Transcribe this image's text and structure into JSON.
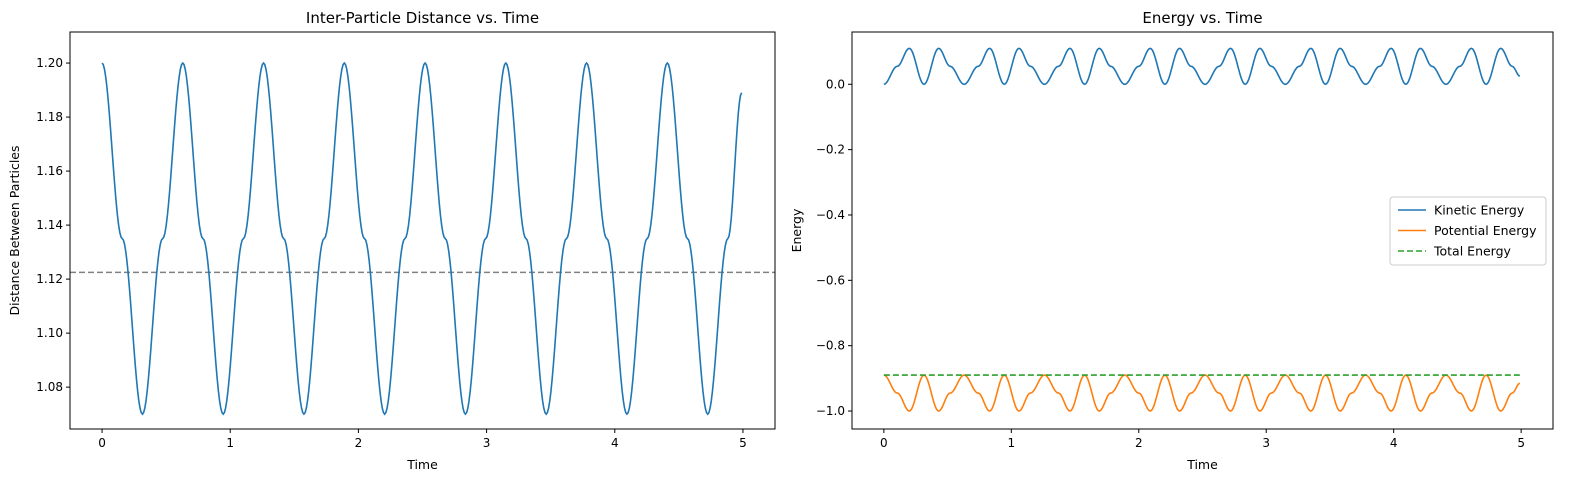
{
  "chart_data": [
    {
      "type": "line",
      "title": "Inter-Particle Distance vs. Time",
      "xlabel": "Time",
      "ylabel": "Distance Between Particles",
      "xlim": [
        -0.25,
        5.25
      ],
      "ylim": [
        1.0645,
        1.2115
      ],
      "xticks": [
        0,
        1,
        2,
        3,
        4,
        5
      ],
      "xtick_labels": [
        "0",
        "1",
        "2",
        "3",
        "4",
        "5"
      ],
      "yticks": [
        1.08,
        1.1,
        1.12,
        1.14,
        1.16,
        1.18,
        1.2
      ],
      "ytick_labels": [
        "1.08",
        "1.10",
        "1.12",
        "1.14",
        "1.16",
        "1.18",
        "1.20"
      ],
      "series": [
        {
          "color": "#1f77b4",
          "style": "solid",
          "x": [
            0,
            0.1575,
            0.315,
            0.4725,
            0.63,
            0.7875,
            0.945,
            1.1025,
            1.26,
            1.4175,
            1.575,
            1.7325,
            1.89,
            2.0475,
            2.205,
            2.3625,
            2.52,
            2.6775,
            2.835,
            2.9925,
            3.15,
            3.3075,
            3.465,
            3.6225,
            3.78,
            3.9375,
            4.095,
            4.2525,
            4.41,
            4.5675,
            4.725,
            4.8825,
            4.99
          ],
          "y": [
            1.2,
            1.135,
            1.07,
            1.135,
            1.2,
            1.135,
            1.07,
            1.135,
            1.2,
            1.135,
            1.07,
            1.135,
            1.2,
            1.135,
            1.07,
            1.135,
            1.2,
            1.135,
            1.07,
            1.135,
            1.2,
            1.135,
            1.07,
            1.135,
            1.2,
            1.135,
            1.07,
            1.135,
            1.2,
            1.135,
            1.07,
            1.135,
            1.189
          ]
        }
      ],
      "hlines": [
        {
          "y": 1.1225,
          "color": "#808080",
          "style": "dashed"
        }
      ],
      "grid": false
    },
    {
      "type": "line",
      "title": "Energy vs. Time",
      "xlabel": "Time",
      "ylabel": "Energy",
      "xlim": [
        -0.25,
        5.25
      ],
      "ylim": [
        -1.055,
        0.16
      ],
      "xticks": [
        0,
        1,
        2,
        3,
        4,
        5
      ],
      "xtick_labels": [
        "0",
        "1",
        "2",
        "3",
        "4",
        "5"
      ],
      "yticks": [
        -1.0,
        -0.8,
        -0.6,
        -0.4,
        -0.2,
        0.0
      ],
      "ytick_labels": [
        "−1.0",
        "−0.8",
        "−0.6",
        "−0.4",
        "−0.2",
        "0.0"
      ],
      "legend_position": "center-right",
      "series": [
        {
          "name": "Kinetic Energy",
          "color": "#1f77b4",
          "style": "solid",
          "x": [
            0,
            0.105,
            0.2,
            0.315,
            0.43,
            0.52,
            0.63,
            0.74,
            0.83,
            0.945,
            1.06,
            1.15,
            1.26,
            1.37,
            1.46,
            1.575,
            1.69,
            1.78,
            1.89,
            2.0,
            2.09,
            2.205,
            2.32,
            2.41,
            2.52,
            2.63,
            2.72,
            2.835,
            2.95,
            3.04,
            3.15,
            3.26,
            3.35,
            3.465,
            3.58,
            3.67,
            3.78,
            3.89,
            3.98,
            4.095,
            4.21,
            4.3,
            4.41,
            4.52,
            4.61,
            4.725,
            4.84,
            4.93,
            4.99
          ],
          "y": [
            0.0,
            0.055,
            0.11,
            0.0,
            0.11,
            0.055,
            0.0,
            0.055,
            0.11,
            0.0,
            0.11,
            0.055,
            0.0,
            0.055,
            0.11,
            0.0,
            0.11,
            0.055,
            0.0,
            0.055,
            0.11,
            0.0,
            0.11,
            0.055,
            0.0,
            0.055,
            0.11,
            0.0,
            0.11,
            0.055,
            0.0,
            0.055,
            0.11,
            0.0,
            0.11,
            0.055,
            0.0,
            0.055,
            0.11,
            0.0,
            0.11,
            0.055,
            0.0,
            0.055,
            0.11,
            0.0,
            0.11,
            0.055,
            0.025
          ]
        },
        {
          "name": "Potential Energy",
          "color": "#ff7f0e",
          "style": "solid",
          "x": [
            0,
            0.105,
            0.2,
            0.315,
            0.43,
            0.52,
            0.63,
            0.74,
            0.83,
            0.945,
            1.06,
            1.15,
            1.26,
            1.37,
            1.46,
            1.575,
            1.69,
            1.78,
            1.89,
            2.0,
            2.09,
            2.205,
            2.32,
            2.41,
            2.52,
            2.63,
            2.72,
            2.835,
            2.95,
            3.04,
            3.15,
            3.26,
            3.35,
            3.465,
            3.58,
            3.67,
            3.78,
            3.89,
            3.98,
            4.095,
            4.21,
            4.3,
            4.41,
            4.52,
            4.61,
            4.725,
            4.84,
            4.93,
            4.99
          ],
          "y": [
            -0.89,
            -0.945,
            -1.0,
            -0.89,
            -1.0,
            -0.945,
            -0.89,
            -0.945,
            -1.0,
            -0.89,
            -1.0,
            -0.945,
            -0.89,
            -0.945,
            -1.0,
            -0.89,
            -1.0,
            -0.945,
            -0.89,
            -0.945,
            -1.0,
            -0.89,
            -1.0,
            -0.945,
            -0.89,
            -0.945,
            -1.0,
            -0.89,
            -1.0,
            -0.945,
            -0.89,
            -0.945,
            -1.0,
            -0.89,
            -1.0,
            -0.945,
            -0.89,
            -0.945,
            -1.0,
            -0.89,
            -1.0,
            -0.945,
            -0.89,
            -0.945,
            -1.0,
            -0.89,
            -1.0,
            -0.945,
            -0.915
          ]
        },
        {
          "name": "Total Energy",
          "color": "#2ca02c",
          "style": "dashed",
          "x": [
            0,
            4.99
          ],
          "y": [
            -0.89,
            -0.89
          ]
        }
      ],
      "grid": false
    }
  ]
}
